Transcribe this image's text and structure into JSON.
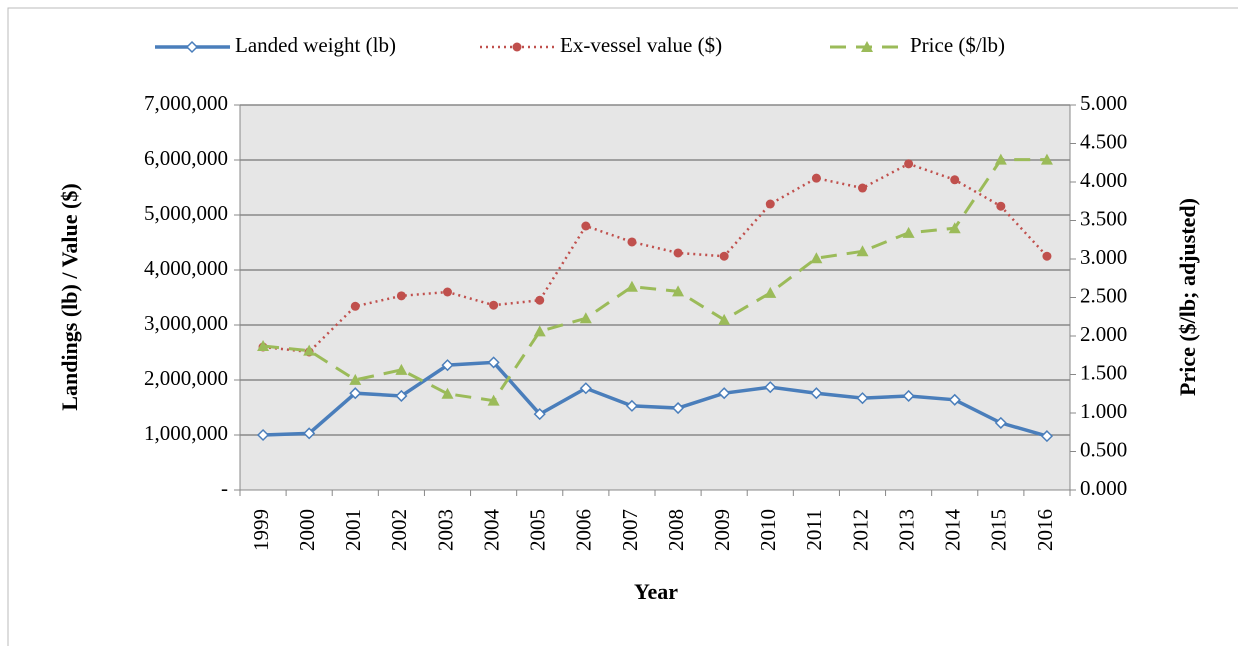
{
  "chart_data": {
    "type": "line",
    "categories": [
      "1999",
      "2000",
      "2001",
      "2002",
      "2003",
      "2004",
      "2005",
      "2006",
      "2007",
      "2008",
      "2009",
      "2010",
      "2011",
      "2012",
      "2013",
      "2014",
      "2015",
      "2016"
    ],
    "series": [
      {
        "name": "Landed weight (lb)",
        "color": "#4a7ebb",
        "values": [
          1000000,
          1030000,
          1760000,
          1710000,
          2270000,
          2320000,
          1380000,
          1850000,
          1530000,
          1490000,
          1760000,
          1870000,
          1760000,
          1670000,
          1710000,
          1640000,
          1220000,
          980000
        ]
      },
      {
        "name": "Ex-vessel value ($)",
        "color": "#c0504d",
        "values": [
          2600000,
          2510000,
          3340000,
          3530000,
          3600000,
          3360000,
          3450000,
          4800000,
          4510000,
          4310000,
          4250000,
          5200000,
          5670000,
          5490000,
          5930000,
          5640000,
          5160000,
          4250000
        ]
      },
      {
        "name": "Price ($/lb)",
        "color": "#9bbb59",
        "axis": "y2",
        "values": [
          1.87,
          1.81,
          1.43,
          1.56,
          1.25,
          1.16,
          2.06,
          2.23,
          2.64,
          2.58,
          2.21,
          2.56,
          3.01,
          3.1,
          3.34,
          3.4,
          4.29,
          4.29
        ]
      }
    ],
    "xlabel": "Year",
    "ylabel": "Landings (lb) / Value ($)",
    "y2label": "Price ($/lb; adjusted)",
    "ylim": [
      0,
      7000000
    ],
    "yticks": [
      {
        "value": 0,
        "label": "-"
      },
      {
        "value": 1000000,
        "label": "1,000,000"
      },
      {
        "value": 2000000,
        "label": "2,000,000"
      },
      {
        "value": 3000000,
        "label": "3,000,000"
      },
      {
        "value": 4000000,
        "label": "4,000,000"
      },
      {
        "value": 5000000,
        "label": "5,000,000"
      },
      {
        "value": 6000000,
        "label": "6,000,000"
      },
      {
        "value": 7000000,
        "label": "7,000,000"
      }
    ],
    "y2lim": [
      0,
      5
    ],
    "y2ticks": [
      {
        "value": 0,
        "label": "0.000"
      },
      {
        "value": 0.5,
        "label": "0.500"
      },
      {
        "value": 1,
        "label": "1.000"
      },
      {
        "value": 1.5,
        "label": "1.500"
      },
      {
        "value": 2,
        "label": "2.000"
      },
      {
        "value": 2.5,
        "label": "2.500"
      },
      {
        "value": 3,
        "label": "3.000"
      },
      {
        "value": 3.5,
        "label": "3.500"
      },
      {
        "value": 4,
        "label": "4.000"
      },
      {
        "value": 4.5,
        "label": "4.500"
      },
      {
        "value": 5,
        "label": "5.000"
      }
    ],
    "grid": true,
    "legend": "top"
  }
}
